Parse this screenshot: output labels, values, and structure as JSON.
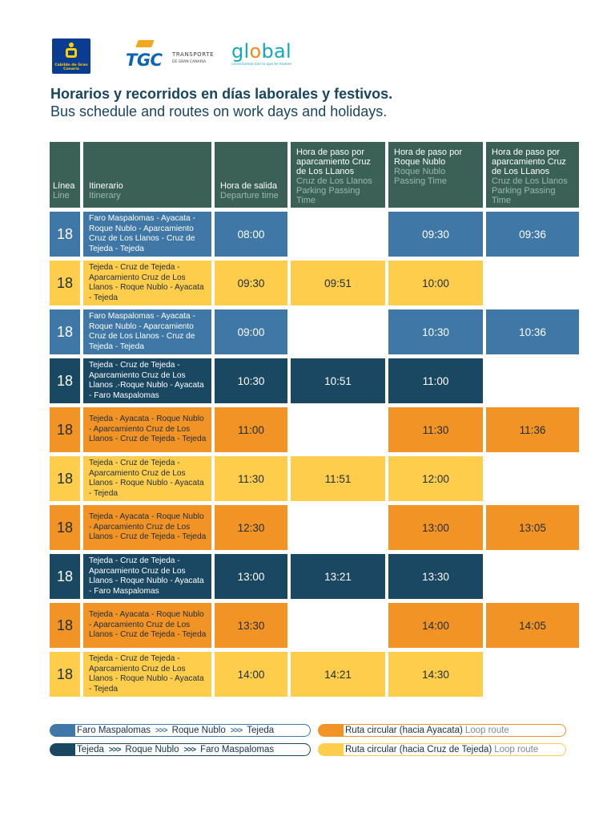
{
  "logos": {
    "cabildo": "Cabildo de Gran Canaria",
    "tgc": "TGC",
    "tgc_sub1": "TRANSPORTE",
    "tgc_sub2": "DE GRAN CANARIA",
    "global_pre": "gl",
    "global_o": "o",
    "global_post": "bal",
    "global_sub": "conectamos con lo que te mueve"
  },
  "title_es": "Horarios y recorridos en días laborales y festivos.",
  "title_en": "Bus schedule and routes on work days and holidays.",
  "headers": {
    "line_es": "Línea",
    "line_en": "Line",
    "itin_es": "Itinerario",
    "itin_en": "Itinerary",
    "dep_es": "Hora de salida",
    "dep_en": "Departure time",
    "cruz1_top": "Hora de paso por aparcamiento Cruz de Los LLanos",
    "cruz1_en": "Cruz de Los Llanos Parking Passing Time",
    "roque_top": "Hora de paso por Roque Nublo",
    "roque_en": "Roque Nublo Passing Time",
    "cruz2_top": "Hora de paso por aparcamiento Cruz de Los LLanos",
    "cruz2_en": "Cruz de Los Llanos Parking Passing Time"
  },
  "rows": [
    {
      "line": "18",
      "itinerary": "Faro Maspalomas - Ayacata - Roque Nublo - Aparcamiento Cruz de Los Llanos - Cruz de Tejeda - Tejeda",
      "departure": "08:00",
      "cruz1": "",
      "roque": "09:30",
      "cruz2": "09:36"
    },
    {
      "line": "18",
      "itinerary": "Tejeda - Cruz de Tejeda - Aparcamiento Cruz de Los Llanos - Roque Nublo - Ayacata - Tejeda",
      "departure": "09:30",
      "cruz1": "09:51",
      "roque": "10:00",
      "cruz2": ""
    },
    {
      "line": "18",
      "itinerary": "Faro Maspalomas - Ayacata - Roque Nublo -  Aparcamiento Cruz de Los Llanos - Cruz de Tejeda - Tejeda",
      "departure": "09:00",
      "cruz1": "",
      "roque": "10:30",
      "cruz2": "10:36"
    },
    {
      "line": "18",
      "itinerary": "Tejeda - Cruz de Tejeda - Aparcamiento Cruz de Los Llanos .-Roque Nublo - Ayacata - Faro Maspalomas",
      "departure": "10:30",
      "cruz1": "10:51",
      "roque": "11:00",
      "cruz2": ""
    },
    {
      "line": "18",
      "itinerary": "Tejeda - Ayacata - Roque Nublo - Aparcamiento Cruz de Los Llanos - Cruz de Tejeda - Tejeda",
      "departure": "11:00",
      "cruz1": "",
      "roque": "11:30",
      "cruz2": "11:36"
    },
    {
      "line": "18",
      "itinerary": "Tejeda - Cruz de Tejeda - Aparcamiento Cruz de Los Llanos - Roque Nublo - Ayacata - Tejeda",
      "departure": "11:30",
      "cruz1": "11:51",
      "roque": "12:00",
      "cruz2": ""
    },
    {
      "line": "18",
      "itinerary": "Tejeda - Ayacata - Roque Nublo -  Aparcamiento Cruz de Los Llanos - Cruz de Tejeda - Tejeda",
      "departure": "12:30",
      "cruz1": "",
      "roque": "13:00",
      "cruz2": "13:05"
    },
    {
      "line": "18",
      "itinerary": "Tejeda - Cruz de Tejeda - Aparcamiento Cruz de Los Llanos - Roque Nublo - Ayacata - Faro Maspalomas",
      "departure": "13:00",
      "cruz1": "13:21",
      "roque": "13:30",
      "cruz2": ""
    },
    {
      "line": "18",
      "itinerary": "Tejeda - Ayacata - Roque Nublo - Aparcamiento Cruz de Los Llanos - Cruz de Tejeda - Tejeda",
      "departure": "13:30",
      "cruz1": "",
      "roque": "14:00",
      "cruz2": "14:05"
    },
    {
      "line": "18",
      "itinerary": "Tejeda - Cruz de Tejeda - Aparcamiento Cruz de Los Llanos - Roque Nublo - Ayacata - Tejeda",
      "departure": "14:00",
      "cruz1": "14:21",
      "roque": "14:30",
      "cruz2": ""
    }
  ],
  "legend": {
    "blue": {
      "a": "Faro Maspalomas",
      "b": "Roque Nublo",
      "c": "Tejeda",
      "arrow": ">>>"
    },
    "navy": {
      "a": "Tejeda",
      "b": "Roque Nublo",
      "c": "Faro Maspalomas",
      "arrow": ">>>"
    },
    "orange": {
      "es": "Ruta circular (hacia Ayacata)",
      "en": "Loop route"
    },
    "yellow": {
      "es": "Ruta circular (hacia Cruz de Tejeda)",
      "en": "Loop route"
    }
  },
  "colors": {
    "blue": "#3f77a6",
    "navy": "#1a4762",
    "orange": "#f29325",
    "yellow": "#fecd4c",
    "header": "#3b6156",
    "title": "#17465e"
  }
}
